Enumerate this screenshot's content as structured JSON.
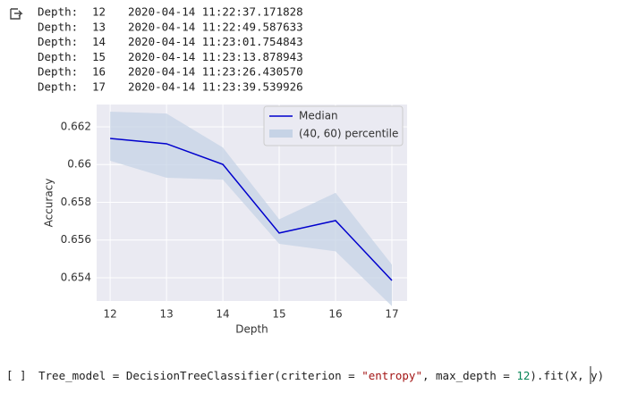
{
  "output_lines": [
    {
      "label": "Depth:",
      "depth": "12",
      "time": "2020-04-14 11:22:37.171828"
    },
    {
      "label": "Depth:",
      "depth": "13",
      "time": "2020-04-14 11:22:49.587633"
    },
    {
      "label": "Depth:",
      "depth": "14",
      "time": "2020-04-14 11:23:01.754843"
    },
    {
      "label": "Depth:",
      "depth": "15",
      "time": "2020-04-14 11:23:13.878943"
    },
    {
      "label": "Depth:",
      "depth": "16",
      "time": "2020-04-14 11:23:26.430570"
    },
    {
      "label": "Depth:",
      "depth": "17",
      "time": "2020-04-14 11:23:39.539926"
    }
  ],
  "chart_data": {
    "type": "line",
    "x_label": "Depth",
    "y_label": "Accuracy",
    "x": [
      12,
      13,
      14,
      15,
      16,
      17
    ],
    "series": [
      {
        "name": "Median",
        "color": "#0000cd",
        "values": [
          0.66138,
          0.6611,
          0.66001,
          0.65637,
          0.65703,
          0.65386
        ]
      }
    ],
    "band": {
      "name": "(40, 60) percentile",
      "color": "#c6d3e6",
      "lower": [
        0.6602,
        0.6593,
        0.6592,
        0.6558,
        0.6554,
        0.6525
      ],
      "upper": [
        0.6628,
        0.6627,
        0.6609,
        0.6571,
        0.6585,
        0.6547
      ]
    },
    "xlim": [
      11.76,
      17.27
    ],
    "ylim": [
      0.65277,
      0.66318
    ],
    "xticks": [
      12,
      13,
      14,
      15,
      16,
      17
    ],
    "yticks": [
      0.654,
      0.656,
      0.658,
      0.66,
      {
        "value": 0.662,
        "label": "0.662"
      }
    ],
    "grid": true,
    "legend": "upper right"
  },
  "code_cell": {
    "prompt": "[ ]",
    "tokens": [
      "Tree_model = DecisionTreeClassifier(criterion = ",
      "\"entropy\"",
      ", max_depth = ",
      "12",
      ").fit(X, y)"
    ]
  }
}
